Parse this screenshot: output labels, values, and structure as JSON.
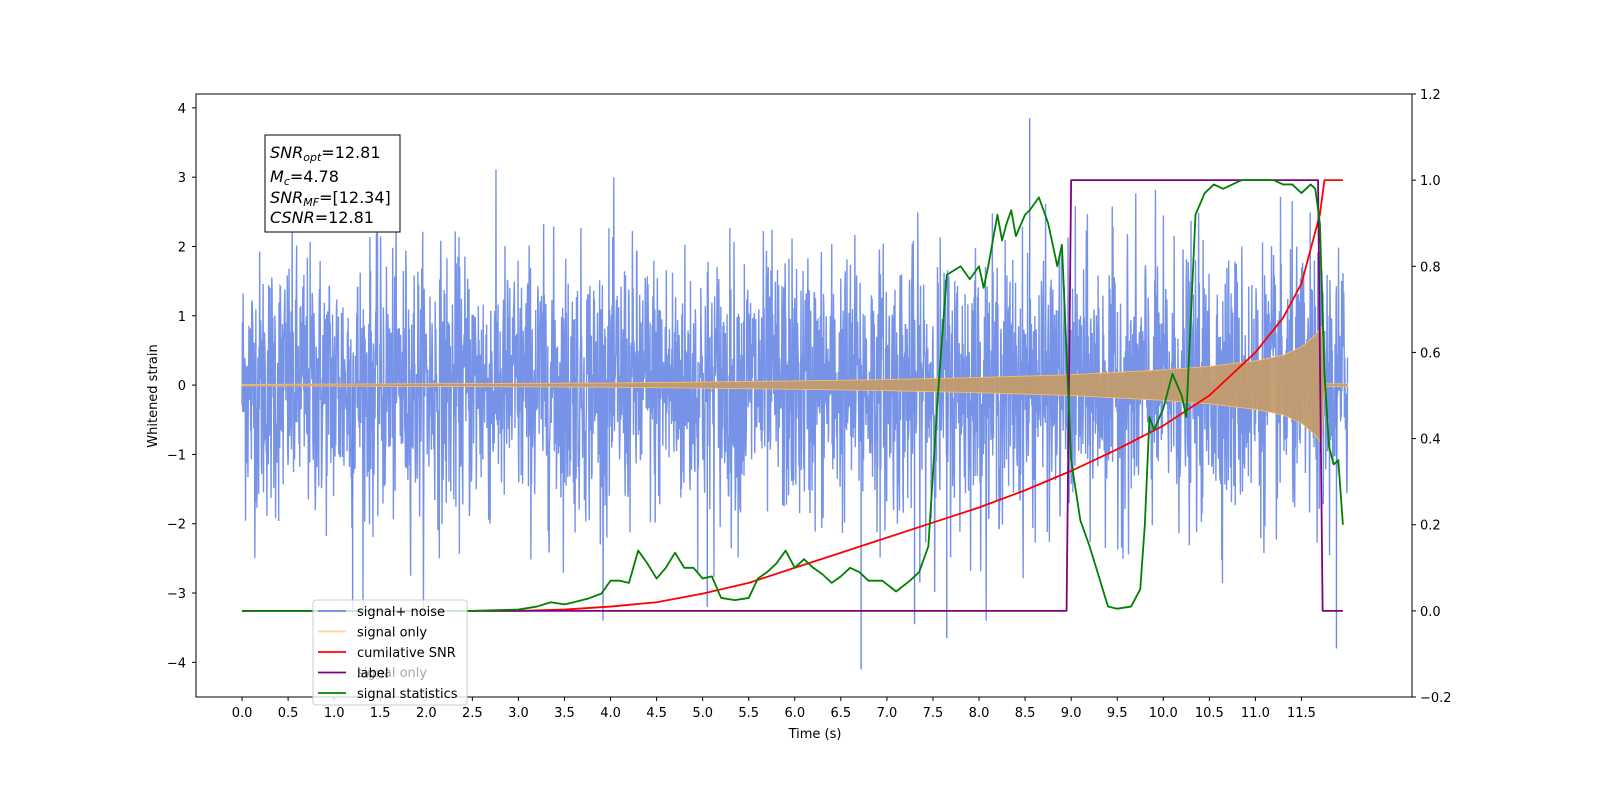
{
  "chart_data": {
    "type": "line",
    "xlabel": "Time (s)",
    "ylabel": "Whitened strain",
    "xlim": [
      -0.5,
      12.7
    ],
    "ylim_left": [
      -4.5,
      4.2
    ],
    "ylim_right": [
      -0.2,
      1.2
    ],
    "x_ticks": [
      "0.0",
      "0.5",
      "1.0",
      "1.5",
      "2.0",
      "2.5",
      "3.0",
      "3.5",
      "4.0",
      "4.5",
      "5.0",
      "5.5",
      "6.0",
      "6.5",
      "7.0",
      "7.5",
      "8.0",
      "8.5",
      "9.0",
      "9.5",
      "10.0",
      "10.5",
      "11.0",
      "11.5"
    ],
    "y_ticks_left": [
      "4",
      "3",
      "2",
      "1",
      "0",
      "−1",
      "−2",
      "−3",
      "−4"
    ],
    "y_ticks_right": [
      "1.2",
      "1.0",
      "0.8",
      "0.6",
      "0.4",
      "0.2",
      "0.0",
      "−0.2"
    ],
    "legend_placement": "lower-left",
    "annotation": {
      "snr_opt": {
        "symbol": "SNR",
        "sub": "opt",
        "value": "=12.81"
      },
      "mc": {
        "symbol": "M",
        "sub": "c",
        "value": "=4.78"
      },
      "snr_mf": {
        "symbol": "SNR",
        "sub": "MF",
        "value": "=[12.34]"
      },
      "csnr": {
        "symbol": "CSNR",
        "sub": "",
        "value": "=12.81"
      }
    },
    "legend": [
      {
        "label": "signal+ noise",
        "color": "#6b8ae6"
      },
      {
        "label": "signal only",
        "color": "#ffbf66"
      },
      {
        "label": "cumilative SNR",
        "color": "#ff0000"
      },
      {
        "label": "label",
        "color": "#800080"
      },
      {
        "label": "signal statistics",
        "color": "#008000"
      }
    ],
    "hidden_legend_text": "signal only",
    "series": [
      {
        "name": "signal+ noise",
        "axis": "left",
        "color": "#6b8ae6",
        "description_values": {
          "x_range": [
            0.0,
            12.0
          ],
          "std": 0.95,
          "min": -4.1,
          "max": 3.85
        }
      },
      {
        "name": "signal only",
        "axis": "left",
        "color": "#c39b6e",
        "envelope": {
          "x": [
            0.0,
            2.0,
            4.0,
            6.0,
            7.0,
            8.0,
            9.0,
            10.0,
            10.5,
            11.0,
            11.3,
            11.5,
            11.65,
            11.72,
            11.75,
            12.0
          ],
          "amp": [
            0.01,
            0.02,
            0.03,
            0.06,
            0.08,
            0.11,
            0.15,
            0.22,
            0.27,
            0.35,
            0.43,
            0.55,
            0.72,
            0.85,
            0.02,
            0.02
          ]
        }
      },
      {
        "name": "cumilative SNR",
        "axis": "right",
        "color": "#ff0000",
        "x": [
          3.0,
          3.5,
          4.0,
          4.5,
          5.0,
          5.5,
          6.0,
          6.5,
          7.0,
          7.5,
          8.0,
          8.5,
          9.0,
          9.5,
          10.0,
          10.5,
          11.0,
          11.3,
          11.5,
          11.6,
          11.7,
          11.75,
          11.95
        ],
        "y": [
          0.0,
          0.003,
          0.01,
          0.02,
          0.04,
          0.065,
          0.1,
          0.135,
          0.17,
          0.205,
          0.24,
          0.28,
          0.325,
          0.375,
          0.43,
          0.5,
          0.6,
          0.68,
          0.76,
          0.84,
          0.92,
          1.0,
          1.0
        ]
      },
      {
        "name": "label",
        "axis": "right",
        "color": "#800080",
        "x": [
          0.0,
          8.95,
          9.0,
          11.68,
          11.73,
          11.95
        ],
        "y": [
          0.0,
          0.0,
          1.0,
          1.0,
          0.0,
          0.0
        ]
      },
      {
        "name": "signal statistics",
        "axis": "right",
        "color": "#008000",
        "x": [
          0.0,
          2.5,
          3.0,
          3.2,
          3.35,
          3.5,
          3.6,
          3.75,
          3.9,
          4.0,
          4.1,
          4.2,
          4.3,
          4.4,
          4.5,
          4.6,
          4.7,
          4.8,
          4.9,
          5.0,
          5.1,
          5.2,
          5.35,
          5.5,
          5.6,
          5.7,
          5.8,
          5.9,
          6.0,
          6.1,
          6.2,
          6.3,
          6.4,
          6.5,
          6.6,
          6.7,
          6.8,
          6.95,
          7.1,
          7.25,
          7.35,
          7.45,
          7.55,
          7.65,
          7.8,
          7.9,
          8.0,
          8.05,
          8.1,
          8.2,
          8.25,
          8.3,
          8.35,
          8.4,
          8.5,
          8.55,
          8.65,
          8.75,
          8.85,
          8.9,
          9.0,
          9.1,
          9.2,
          9.3,
          9.4,
          9.5,
          9.65,
          9.75,
          9.8,
          9.85,
          9.9,
          10.0,
          10.1,
          10.2,
          10.25,
          10.35,
          10.45,
          10.55,
          10.65,
          10.75,
          10.85,
          11.0,
          11.2,
          11.3,
          11.4,
          11.5,
          11.6,
          11.65,
          11.7,
          11.75,
          11.8,
          11.85,
          11.9,
          11.95
        ],
        "y": [
          0.0,
          0.0,
          0.003,
          0.01,
          0.02,
          0.015,
          0.02,
          0.028,
          0.04,
          0.07,
          0.07,
          0.065,
          0.14,
          0.11,
          0.075,
          0.1,
          0.135,
          0.1,
          0.1,
          0.075,
          0.08,
          0.03,
          0.025,
          0.03,
          0.075,
          0.09,
          0.11,
          0.14,
          0.1,
          0.12,
          0.1,
          0.085,
          0.065,
          0.08,
          0.1,
          0.09,
          0.07,
          0.07,
          0.045,
          0.07,
          0.09,
          0.15,
          0.49,
          0.78,
          0.8,
          0.77,
          0.8,
          0.75,
          0.8,
          0.92,
          0.86,
          0.9,
          0.93,
          0.87,
          0.92,
          0.93,
          0.96,
          0.9,
          0.8,
          0.85,
          0.35,
          0.21,
          0.15,
          0.08,
          0.01,
          0.005,
          0.01,
          0.05,
          0.2,
          0.45,
          0.42,
          0.47,
          0.55,
          0.5,
          0.45,
          0.92,
          0.97,
          0.99,
          0.98,
          0.99,
          1.0,
          1.0,
          1.0,
          0.99,
          0.99,
          0.97,
          0.99,
          0.98,
          0.9,
          0.55,
          0.38,
          0.34,
          0.35,
          0.2
        ]
      }
    ]
  }
}
